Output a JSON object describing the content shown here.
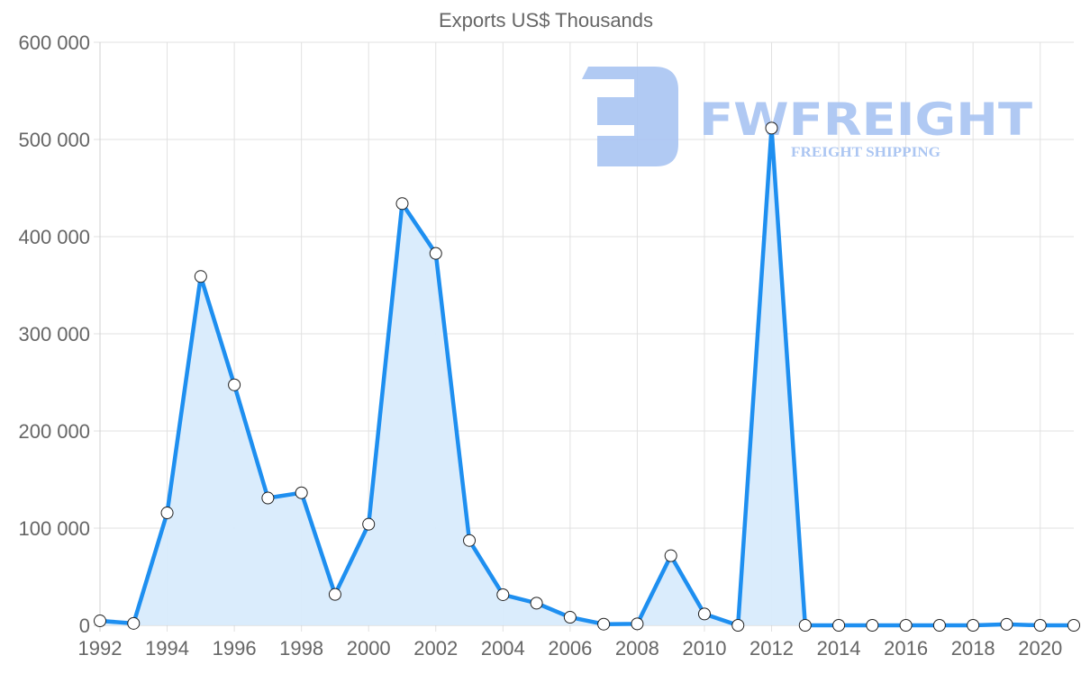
{
  "chart_data": {
    "type": "area",
    "title": "Exports US$ Thousands",
    "xlabel": "",
    "ylabel": "",
    "x": [
      1992,
      1993,
      1994,
      1995,
      1996,
      1997,
      1998,
      1999,
      2000,
      2001,
      2002,
      2003,
      2004,
      2005,
      2006,
      2007,
      2008,
      2009,
      2010,
      2011,
      2012,
      2013,
      2014,
      2015,
      2016,
      2017,
      2018,
      2019,
      2020,
      2021
    ],
    "series": [
      {
        "name": "Exports US$ Thousands",
        "values": [
          4600,
          2000,
          115700,
          359000,
          247500,
          131000,
          136400,
          31800,
          104000,
          434000,
          382700,
          87300,
          31500,
          22800,
          8300,
          1200,
          1500,
          71600,
          11700,
          0,
          511700,
          0,
          0,
          0,
          0,
          0,
          0,
          1000,
          0,
          0
        ]
      }
    ],
    "ylim": [
      0,
      600000
    ],
    "yticks": [
      0,
      100000,
      200000,
      300000,
      400000,
      500000,
      600000
    ],
    "ytick_labels": [
      "0",
      "100 000",
      "200 000",
      "300 000",
      "400 000",
      "500 000",
      "600 000"
    ],
    "xticks": [
      1992,
      1994,
      1996,
      1998,
      2000,
      2002,
      2004,
      2006,
      2008,
      2010,
      2012,
      2014,
      2016,
      2018,
      2020
    ],
    "xtick_labels": [
      "1992",
      "1994",
      "1996",
      "1998",
      "2000",
      "2002",
      "2004",
      "2006",
      "2008",
      "2010",
      "2012",
      "2014",
      "2016",
      "2018",
      "2020"
    ],
    "grid": true,
    "legend": null,
    "colors": {
      "line": "#1e8ff0",
      "fill": "#d8ebfc",
      "marker_fill": "#ffffff",
      "marker_stroke": "#222222"
    }
  },
  "watermark": {
    "brand": "FWFREIGHT",
    "tagline": "FREIGHT SHIPPING",
    "color": "#a8c4f2"
  }
}
